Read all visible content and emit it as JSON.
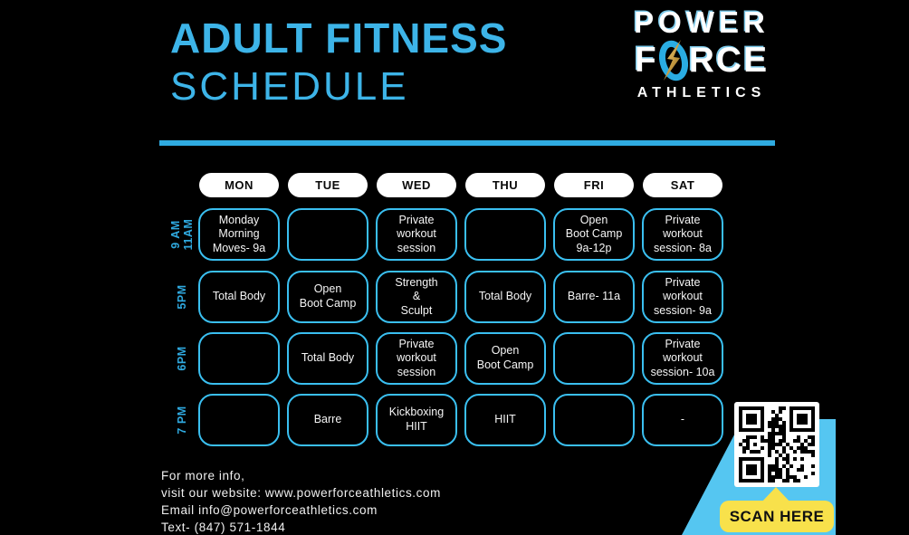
{
  "colors": {
    "accent": "#3db4e8",
    "cell_border": "#3abff0",
    "banner_blue": "#55c6f1",
    "button_yellow": "#f8e14b",
    "logo_oval_blue": "#2aace2",
    "logo_bolt_gold": "#c99e45"
  },
  "header": {
    "title_line1": "ADULT FITNESS",
    "title_line2": "SCHEDULE"
  },
  "logo": {
    "line1": "POWER",
    "line2_prefix": "F",
    "line2_suffix": "RCE",
    "line3": "ATHLETICS",
    "oval_icon": "lightning-bolt-icon"
  },
  "schedule": {
    "days": [
      "MON",
      "TUE",
      "WED",
      "THU",
      "FRI",
      "SAT"
    ],
    "times": [
      "9 AM\n11AM",
      "5PM",
      "6PM",
      "7 PM"
    ],
    "rows": [
      [
        "Monday\nMorning\nMoves- 9a",
        "",
        "Private\nworkout\nsession",
        "",
        "Open\nBoot Camp\n9a-12p",
        "Private\nworkout\nsession- 8a"
      ],
      [
        "Total Body",
        "Open\nBoot Camp",
        "Strength\n&\nSculpt",
        "Total Body",
        "Barre- 11a",
        "Private\nworkout\nsession- 9a"
      ],
      [
        "",
        "Total Body",
        "Private\nworkout\nsession",
        "Open\nBoot Camp",
        "",
        "Private\nworkout\nsession- 10a"
      ],
      [
        "",
        "Barre",
        "Kickboxing\nHIIT",
        "HIIT",
        "",
        "-"
      ]
    ]
  },
  "footer": {
    "lines": [
      "For more info,",
      "visit our website: www.powerforceathletics.com",
      "Email info@powerforceathletics.com",
      "Text- (847) 571-1844"
    ]
  },
  "scan": {
    "label": "SCAN HERE",
    "qr_icon": "qr-code-icon"
  }
}
